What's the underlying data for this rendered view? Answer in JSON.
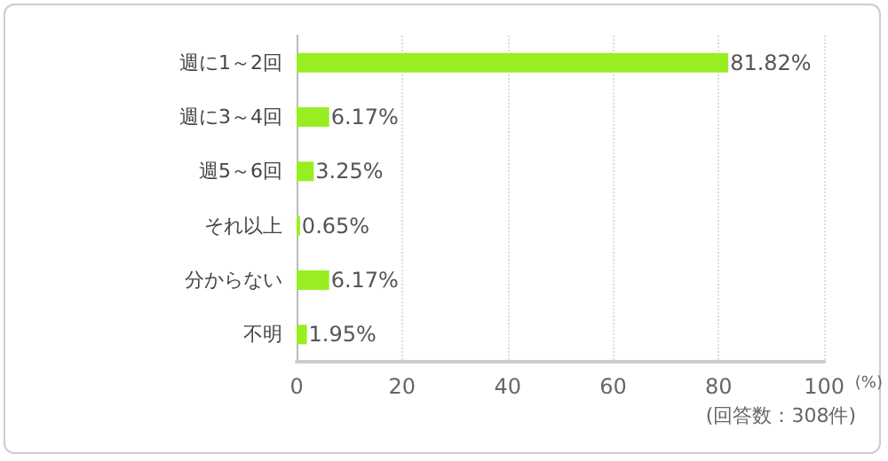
{
  "chart_data": {
    "type": "bar",
    "orientation": "horizontal",
    "categories": [
      "週に1～2回",
      "週に3～4回",
      "週5～6回",
      "それ以上",
      "分からない",
      "不明"
    ],
    "values": [
      81.82,
      6.17,
      3.25,
      0.65,
      6.17,
      1.95
    ],
    "value_labels": [
      "81.82%",
      "6.17%",
      "3.25%",
      "0.65%",
      "6.17%",
      "1.95%"
    ],
    "color": "#99ee22",
    "xlim": [
      0,
      100
    ],
    "xticks": [
      0,
      20,
      40,
      60,
      80,
      100
    ],
    "xlabel": "(%)",
    "annotations": [
      "(回答数：308件)"
    ],
    "grid": "x"
  }
}
